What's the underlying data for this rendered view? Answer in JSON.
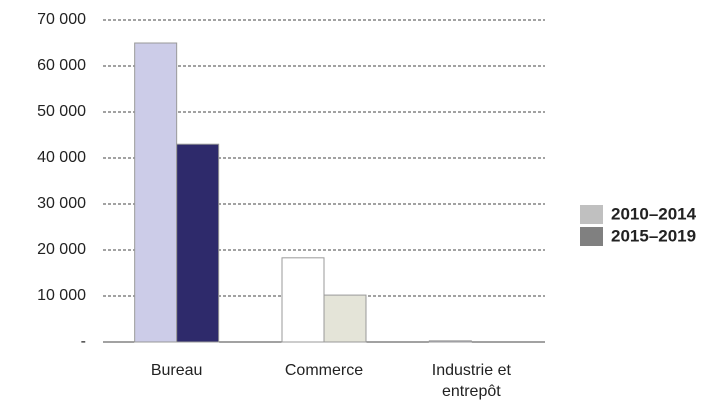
{
  "chart_data": {
    "type": "bar",
    "categories": [
      "Bureau",
      "Commerce",
      "Industrie et entrepôt"
    ],
    "series": [
      {
        "name": "2010–2014",
        "color": "#c0c0c0",
        "bar_colors": [
          "#cccce8",
          "#ffffff",
          "#cccce8"
        ],
        "values": [
          65000,
          18300,
          250
        ]
      },
      {
        "name": "2015–2019",
        "color": "#808080",
        "bar_colors": [
          "#2e2a6b",
          "#e4e4d8",
          "#2e2a6b"
        ],
        "values": [
          43000,
          10200,
          0
        ]
      }
    ],
    "ylim": [
      0,
      70000
    ],
    "yticks": [
      {
        "value": 0,
        "label": "-"
      },
      {
        "value": 10000,
        "label": "10 000"
      },
      {
        "value": 20000,
        "label": "20 000"
      },
      {
        "value": 30000,
        "label": "30 000"
      },
      {
        "value": 40000,
        "label": "40 000"
      },
      {
        "value": 50000,
        "label": "50 000"
      },
      {
        "value": 60000,
        "label": "60 000"
      },
      {
        "value": 70000,
        "label": "70 000"
      }
    ],
    "grid": true,
    "legend": "right"
  }
}
